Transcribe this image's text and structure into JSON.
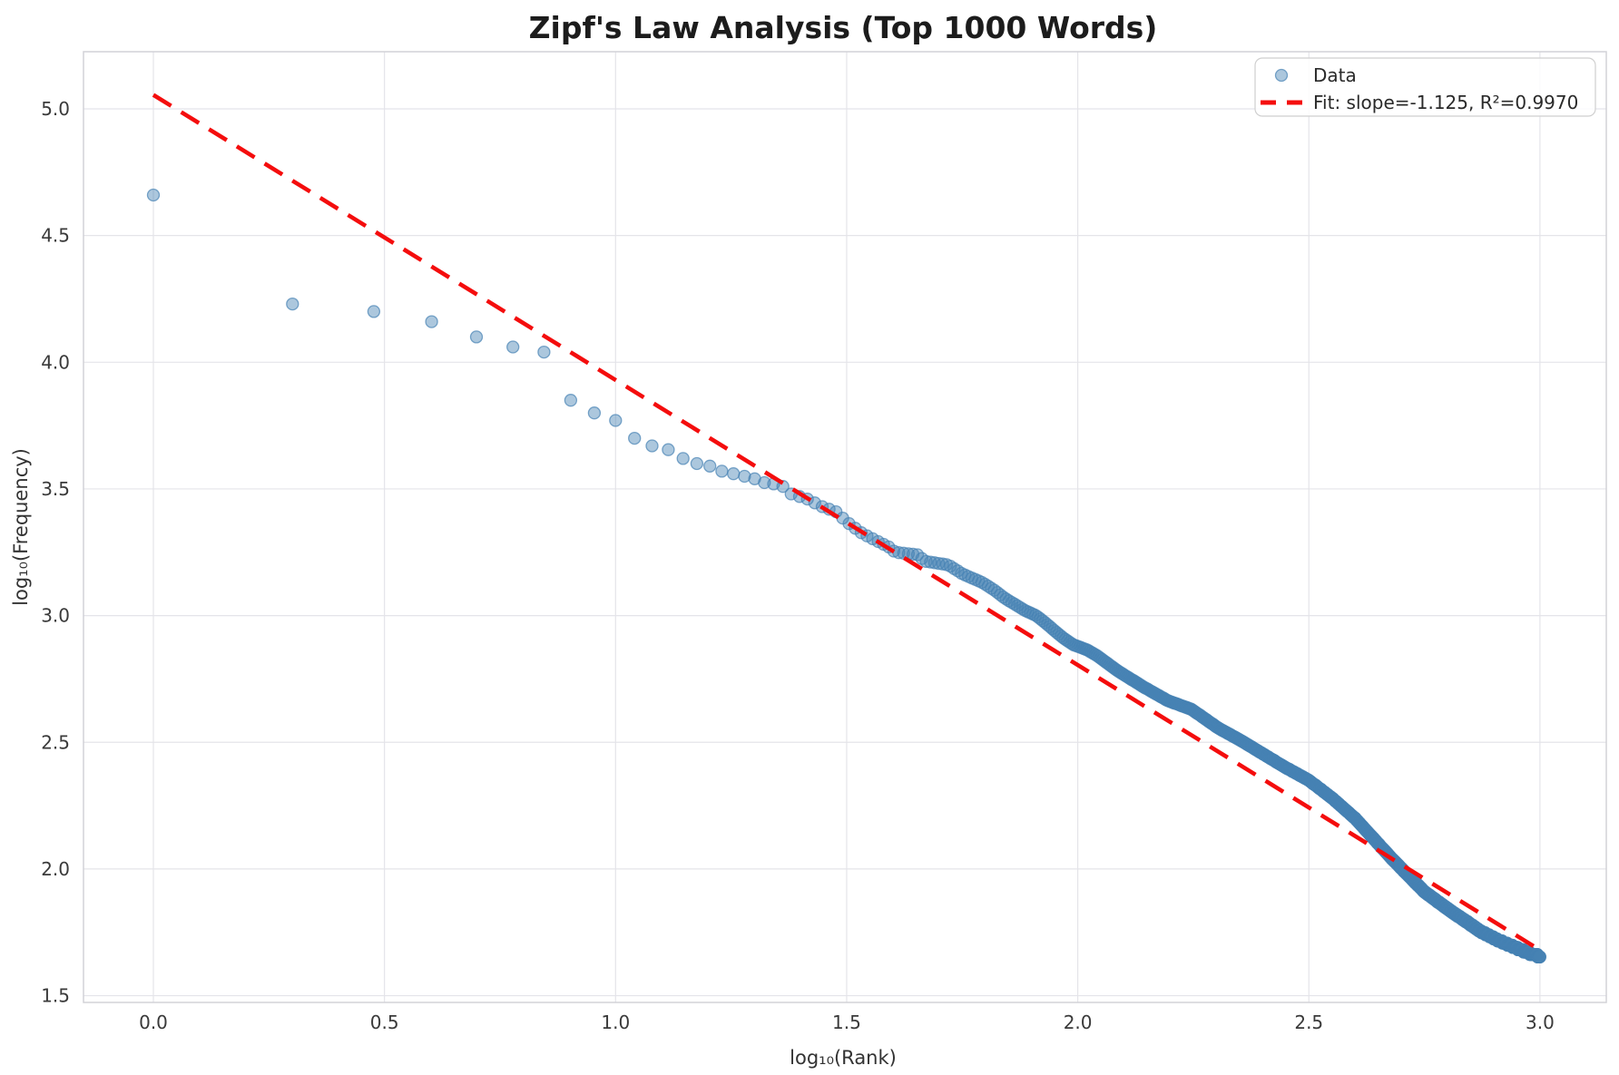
{
  "figure": {
    "title": "Zipf's Law Analysis (Top 1000 Words)"
  },
  "chart_data": {
    "type": "scatter",
    "title": "Zipf's Law Analysis (Top 1000 Words)",
    "xlabel": "log₁₀(Rank)",
    "ylabel": "log₁₀(Frequency)",
    "xlim": [
      -0.15,
      3.14
    ],
    "ylim": [
      1.48,
      5.23
    ],
    "xticks": [
      0.0,
      0.5,
      1.0,
      1.5,
      2.0,
      2.5,
      3.0
    ],
    "xtick_labels": [
      "0.0",
      "0.5",
      "1.0",
      "1.5",
      "2.0",
      "2.5",
      "3.0"
    ],
    "yticks": [
      1.5,
      2.0,
      2.5,
      3.0,
      3.5,
      4.0,
      4.5,
      5.0
    ],
    "ytick_labels": [
      "1.5",
      "2.0",
      "2.5",
      "3.0",
      "3.5",
      "4.0",
      "4.5",
      "5.0"
    ],
    "grid": true,
    "colors": {
      "marker_fill": "rgba(70,130,180,0.45)",
      "marker_edge": "rgba(70,130,180,0.70)",
      "fit_line": "#f40d0d",
      "gridline": "#e4e4e9",
      "plot_border": "#d2d2d7"
    },
    "legend": {
      "position": "upper right",
      "entries": [
        {
          "label": "Data",
          "marker": "circle"
        },
        {
          "label": "Fit: slope=-1.125, R²=0.9970",
          "marker": "dashed-line"
        }
      ]
    },
    "series": [
      {
        "name": "Data",
        "type": "scatter",
        "n_points": 1000,
        "x_is": "log10(rank)",
        "y_is": "log10(frequency)",
        "points_rank_1_to_30": [
          [
            0.0,
            4.66
          ],
          [
            0.301,
            4.23
          ],
          [
            0.477,
            4.2
          ],
          [
            0.602,
            4.16
          ],
          [
            0.699,
            4.1
          ],
          [
            0.778,
            4.06
          ],
          [
            0.845,
            4.04
          ],
          [
            0.903,
            3.85
          ],
          [
            0.954,
            3.8
          ],
          [
            1.0,
            3.77
          ],
          [
            1.041,
            3.7
          ],
          [
            1.079,
            3.67
          ],
          [
            1.114,
            3.655
          ],
          [
            1.146,
            3.62
          ],
          [
            1.176,
            3.6
          ],
          [
            1.204,
            3.59
          ],
          [
            1.23,
            3.57
          ],
          [
            1.255,
            3.56
          ],
          [
            1.279,
            3.55
          ],
          [
            1.301,
            3.54
          ],
          [
            1.322,
            3.525
          ],
          [
            1.342,
            3.52
          ],
          [
            1.362,
            3.51
          ],
          [
            1.38,
            3.48
          ],
          [
            1.398,
            3.47
          ],
          [
            1.415,
            3.46
          ],
          [
            1.431,
            3.445
          ],
          [
            1.447,
            3.43
          ],
          [
            1.462,
            3.42
          ],
          [
            1.477,
            3.41
          ]
        ],
        "band_ranks": [
          31,
          1000
        ],
        "band_curve_anchors": [
          [
            1.477,
            3.41
          ],
          [
            1.5,
            3.37
          ],
          [
            1.533,
            3.325
          ],
          [
            1.56,
            3.3
          ],
          [
            1.592,
            3.27
          ],
          [
            1.605,
            3.25
          ],
          [
            1.655,
            3.24
          ],
          [
            1.668,
            3.215
          ],
          [
            1.72,
            3.2
          ],
          [
            1.75,
            3.165
          ],
          [
            1.794,
            3.13
          ],
          [
            1.82,
            3.1
          ],
          [
            1.841,
            3.07
          ],
          [
            1.886,
            3.02
          ],
          [
            1.91,
            3.0
          ],
          [
            1.931,
            2.97
          ],
          [
            1.95,
            2.94
          ],
          [
            1.97,
            2.91
          ],
          [
            1.99,
            2.885
          ],
          [
            2.02,
            2.865
          ],
          [
            2.043,
            2.84
          ],
          [
            2.088,
            2.78
          ],
          [
            2.141,
            2.72
          ],
          [
            2.194,
            2.665
          ],
          [
            2.246,
            2.63
          ],
          [
            2.305,
            2.555
          ],
          [
            2.35,
            2.51
          ],
          [
            2.4,
            2.455
          ],
          [
            2.45,
            2.4
          ],
          [
            2.5,
            2.35
          ],
          [
            2.55,
            2.28
          ],
          [
            2.6,
            2.2
          ],
          [
            2.65,
            2.1
          ],
          [
            2.68,
            2.04
          ],
          [
            2.712,
            1.98
          ],
          [
            2.75,
            1.91
          ],
          [
            2.776,
            1.875
          ],
          [
            2.81,
            1.83
          ],
          [
            2.843,
            1.79
          ],
          [
            2.87,
            1.755
          ],
          [
            2.908,
            1.72
          ],
          [
            2.94,
            1.695
          ],
          [
            2.973,
            1.67
          ],
          [
            3.0,
            1.655
          ]
        ]
      },
      {
        "name": "Fit",
        "type": "line",
        "style": "dashed",
        "slope": -1.125,
        "intercept": 5.055,
        "r2": 0.997,
        "x_range": [
          0,
          3
        ]
      }
    ]
  }
}
